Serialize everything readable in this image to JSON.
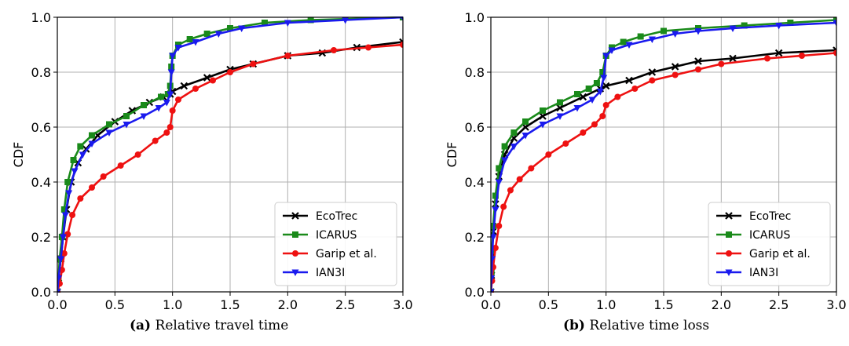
{
  "colors": {
    "EcoTrec": "#000000",
    "ICARUS": "#1a8a1a",
    "Garip et al.": "#ee1111",
    "IAN3I": "#1a1aee"
  },
  "markers": {
    "EcoTrec": "x",
    "ICARUS": "square",
    "Garip et al.": "circle",
    "IAN3I": "triangle-down"
  },
  "captions": [
    {
      "label": "(a)",
      "text": "Relative travel time"
    },
    {
      "label": "(b)",
      "text": "Relative time loss"
    }
  ],
  "chart_data": [
    {
      "type": "line",
      "xlabel": "",
      "ylabel": "CDF",
      "xlim": [
        0,
        3
      ],
      "ylim": [
        0,
        1
      ],
      "xticks": [
        "0.0",
        "0.5",
        "1.0",
        "1.5",
        "2.0",
        "2.5",
        "3.0"
      ],
      "yticks": [
        "0.0",
        "0.2",
        "0.4",
        "0.6",
        "0.8",
        "1.0"
      ],
      "grid": true,
      "legend": "bottom-right",
      "series": [
        {
          "name": "EcoTrec",
          "points": [
            [
              0,
              0
            ],
            [
              0.01,
              0.05
            ],
            [
              0.03,
              0.12
            ],
            [
              0.05,
              0.2
            ],
            [
              0.08,
              0.3
            ],
            [
              0.12,
              0.4
            ],
            [
              0.18,
              0.47
            ],
            [
              0.25,
              0.52
            ],
            [
              0.35,
              0.57
            ],
            [
              0.5,
              0.62
            ],
            [
              0.65,
              0.66
            ],
            [
              0.8,
              0.69
            ],
            [
              0.92,
              0.71
            ],
            [
              0.98,
              0.72
            ],
            [
              1.0,
              0.73
            ],
            [
              1.1,
              0.75
            ],
            [
              1.3,
              0.78
            ],
            [
              1.5,
              0.81
            ],
            [
              1.7,
              0.83
            ],
            [
              2.0,
              0.86
            ],
            [
              2.3,
              0.87
            ],
            [
              2.6,
              0.89
            ],
            [
              3.0,
              0.91
            ]
          ]
        },
        {
          "name": "ICARUS",
          "points": [
            [
              0,
              0
            ],
            [
              0.01,
              0.05
            ],
            [
              0.02,
              0.12
            ],
            [
              0.04,
              0.2
            ],
            [
              0.06,
              0.3
            ],
            [
              0.09,
              0.4
            ],
            [
              0.14,
              0.48
            ],
            [
              0.2,
              0.53
            ],
            [
              0.3,
              0.57
            ],
            [
              0.45,
              0.61
            ],
            [
              0.6,
              0.64
            ],
            [
              0.75,
              0.68
            ],
            [
              0.9,
              0.71
            ],
            [
              0.96,
              0.72
            ],
            [
              0.98,
              0.75
            ],
            [
              0.99,
              0.82
            ],
            [
              1.0,
              0.86
            ],
            [
              1.05,
              0.9
            ],
            [
              1.15,
              0.92
            ],
            [
              1.3,
              0.94
            ],
            [
              1.5,
              0.96
            ],
            [
              1.8,
              0.98
            ],
            [
              2.2,
              0.99
            ],
            [
              3.0,
              1.0
            ]
          ]
        },
        {
          "name": "Garip et al.",
          "points": [
            [
              0,
              0
            ],
            [
              0.02,
              0.03
            ],
            [
              0.04,
              0.08
            ],
            [
              0.06,
              0.14
            ],
            [
              0.09,
              0.21
            ],
            [
              0.13,
              0.28
            ],
            [
              0.2,
              0.34
            ],
            [
              0.3,
              0.38
            ],
            [
              0.4,
              0.42
            ],
            [
              0.55,
              0.46
            ],
            [
              0.7,
              0.5
            ],
            [
              0.85,
              0.55
            ],
            [
              0.95,
              0.58
            ],
            [
              0.98,
              0.6
            ],
            [
              1.0,
              0.66
            ],
            [
              1.05,
              0.7
            ],
            [
              1.2,
              0.74
            ],
            [
              1.35,
              0.77
            ],
            [
              1.5,
              0.8
            ],
            [
              1.7,
              0.83
            ],
            [
              2.0,
              0.86
            ],
            [
              2.4,
              0.88
            ],
            [
              2.7,
              0.89
            ],
            [
              3.0,
              0.9
            ]
          ]
        },
        {
          "name": "IAN3I",
          "points": [
            [
              0,
              0
            ],
            [
              0.01,
              0.05
            ],
            [
              0.03,
              0.12
            ],
            [
              0.05,
              0.2
            ],
            [
              0.07,
              0.28
            ],
            [
              0.1,
              0.36
            ],
            [
              0.15,
              0.44
            ],
            [
              0.22,
              0.5
            ],
            [
              0.3,
              0.54
            ],
            [
              0.45,
              0.58
            ],
            [
              0.6,
              0.61
            ],
            [
              0.75,
              0.64
            ],
            [
              0.88,
              0.67
            ],
            [
              0.95,
              0.69
            ],
            [
              0.98,
              0.72
            ],
            [
              0.99,
              0.8
            ],
            [
              1.0,
              0.86
            ],
            [
              1.05,
              0.89
            ],
            [
              1.2,
              0.91
            ],
            [
              1.4,
              0.94
            ],
            [
              1.6,
              0.96
            ],
            [
              2.0,
              0.98
            ],
            [
              2.5,
              0.99
            ],
            [
              3.0,
              1.0
            ]
          ]
        }
      ]
    },
    {
      "type": "line",
      "xlabel": "",
      "ylabel": "CDF",
      "xlim": [
        0,
        3
      ],
      "ylim": [
        0,
        1
      ],
      "xticks": [
        "0.0",
        "0.5",
        "1.0",
        "1.5",
        "2.0",
        "2.5",
        "3.0"
      ],
      "yticks": [
        "0.0",
        "0.2",
        "0.4",
        "0.6",
        "0.8",
        "1.0"
      ],
      "grid": true,
      "legend": "bottom-right",
      "series": [
        {
          "name": "EcoTrec",
          "points": [
            [
              0,
              0
            ],
            [
              0.005,
              0.06
            ],
            [
              0.01,
              0.14
            ],
            [
              0.02,
              0.22
            ],
            [
              0.04,
              0.32
            ],
            [
              0.07,
              0.42
            ],
            [
              0.12,
              0.5
            ],
            [
              0.2,
              0.56
            ],
            [
              0.3,
              0.6
            ],
            [
              0.45,
              0.64
            ],
            [
              0.6,
              0.67
            ],
            [
              0.8,
              0.71
            ],
            [
              0.95,
              0.74
            ],
            [
              1.0,
              0.75
            ],
            [
              1.2,
              0.77
            ],
            [
              1.4,
              0.8
            ],
            [
              1.6,
              0.82
            ],
            [
              1.8,
              0.84
            ],
            [
              2.1,
              0.85
            ],
            [
              2.5,
              0.87
            ],
            [
              3.0,
              0.88
            ]
          ]
        },
        {
          "name": "ICARUS",
          "points": [
            [
              0,
              0
            ],
            [
              0.005,
              0.07
            ],
            [
              0.01,
              0.15
            ],
            [
              0.02,
              0.24
            ],
            [
              0.04,
              0.35
            ],
            [
              0.07,
              0.45
            ],
            [
              0.12,
              0.53
            ],
            [
              0.2,
              0.58
            ],
            [
              0.3,
              0.62
            ],
            [
              0.45,
              0.66
            ],
            [
              0.6,
              0.69
            ],
            [
              0.75,
              0.72
            ],
            [
              0.85,
              0.74
            ],
            [
              0.92,
              0.76
            ],
            [
              0.97,
              0.8
            ],
            [
              1.0,
              0.86
            ],
            [
              1.05,
              0.89
            ],
            [
              1.15,
              0.91
            ],
            [
              1.3,
              0.93
            ],
            [
              1.5,
              0.95
            ],
            [
              1.8,
              0.96
            ],
            [
              2.2,
              0.97
            ],
            [
              2.6,
              0.98
            ],
            [
              3.0,
              0.99
            ]
          ]
        },
        {
          "name": "Garip et al.",
          "points": [
            [
              0,
              0
            ],
            [
              0.01,
              0.04
            ],
            [
              0.02,
              0.09
            ],
            [
              0.04,
              0.16
            ],
            [
              0.07,
              0.24
            ],
            [
              0.11,
              0.31
            ],
            [
              0.17,
              0.37
            ],
            [
              0.25,
              0.41
            ],
            [
              0.35,
              0.45
            ],
            [
              0.5,
              0.5
            ],
            [
              0.65,
              0.54
            ],
            [
              0.8,
              0.58
            ],
            [
              0.9,
              0.61
            ],
            [
              0.97,
              0.64
            ],
            [
              1.0,
              0.68
            ],
            [
              1.1,
              0.71
            ],
            [
              1.25,
              0.74
            ],
            [
              1.4,
              0.77
            ],
            [
              1.6,
              0.79
            ],
            [
              1.8,
              0.81
            ],
            [
              2.0,
              0.83
            ],
            [
              2.4,
              0.85
            ],
            [
              2.7,
              0.86
            ],
            [
              3.0,
              0.87
            ]
          ]
        },
        {
          "name": "IAN3I",
          "points": [
            [
              0,
              0
            ],
            [
              0.005,
              0.05
            ],
            [
              0.01,
              0.12
            ],
            [
              0.02,
              0.2
            ],
            [
              0.04,
              0.3
            ],
            [
              0.07,
              0.4
            ],
            [
              0.12,
              0.48
            ],
            [
              0.2,
              0.53
            ],
            [
              0.3,
              0.57
            ],
            [
              0.45,
              0.61
            ],
            [
              0.6,
              0.64
            ],
            [
              0.75,
              0.67
            ],
            [
              0.88,
              0.7
            ],
            [
              0.95,
              0.73
            ],
            [
              0.98,
              0.78
            ],
            [
              1.0,
              0.86
            ],
            [
              1.05,
              0.88
            ],
            [
              1.2,
              0.9
            ],
            [
              1.4,
              0.92
            ],
            [
              1.6,
              0.94
            ],
            [
              1.8,
              0.95
            ],
            [
              2.1,
              0.96
            ],
            [
              2.5,
              0.97
            ],
            [
              3.0,
              0.98
            ]
          ]
        }
      ]
    }
  ]
}
